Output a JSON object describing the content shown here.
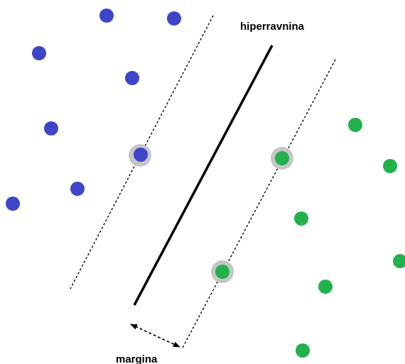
{
  "labels": {
    "hyperplane": "hiperravnina",
    "margin": "margina"
  },
  "colors": {
    "class_a": "#3f45c7",
    "class_b": "#22b14c",
    "support_halo": "#c0c0c0",
    "hyperplane": "#000000",
    "margin_line": "#000000"
  },
  "points": {
    "class_a_count": 8,
    "class_b_count": 8,
    "support_vectors_class_a": 1,
    "support_vectors_class_b": 2
  }
}
